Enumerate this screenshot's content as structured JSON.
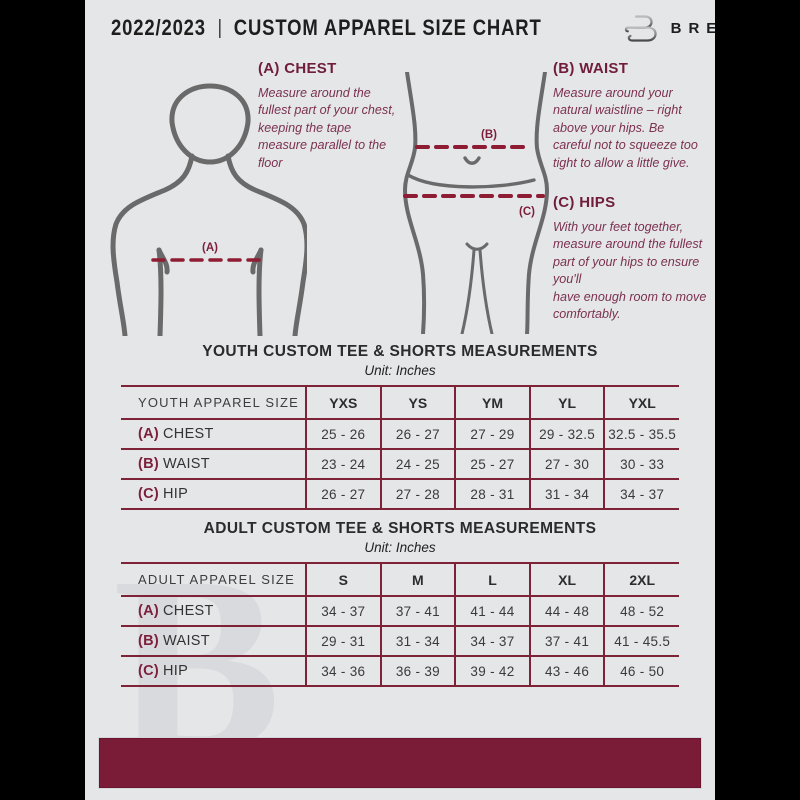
{
  "header": {
    "season": "2022/2023",
    "separator": "|",
    "title": "CUSTOM APPAREL SIZE CHART",
    "brand": "BREAKAWAY",
    "logo_icon": "breakaway-b-logo"
  },
  "colors": {
    "page_background": "#e5e6e8",
    "letterbox": "#000000",
    "maroon_accent": "#7a1c38",
    "maroon_table_line": "#7e2238",
    "maroon_dash_line": "#8e1c33",
    "figure_gray": "#6a6a6b"
  },
  "notes": {
    "chest": {
      "heading": "(A) CHEST",
      "body": "Measure around the fullest part of your chest, keeping the tape measure parallel to the floor"
    },
    "waist": {
      "heading": "(B) WAIST",
      "body": "Measure around your natural waistline – right above your hips. Be careful not to squeeze too tight to allow a little give."
    },
    "hips": {
      "heading": "(C) HIPS",
      "body": "With your feet together, measure around the fullest part of your hips to ensure you'll\nhave enough room to move comfortably."
    }
  },
  "diagram": {
    "label_a": "(A)",
    "label_b": "(B)",
    "label_c": "(C)"
  },
  "watermark": {
    "letter": "B"
  },
  "youth": {
    "title": "YOUTH CUSTOM TEE & SHORTS MEASUREMENTS",
    "unit": "Unit: Inches",
    "size_header": "YOUTH APPAREL SIZE",
    "columns": [
      "YXS",
      "YS",
      "YM",
      "YL",
      "YXL"
    ],
    "rows": [
      {
        "prefix": "(A)",
        "label": "CHEST",
        "values": [
          "25 - 26",
          "26 - 27",
          "27 - 29",
          "29 - 32.5",
          "32.5 - 35.5"
        ]
      },
      {
        "prefix": "(B)",
        "label": "WAIST",
        "values": [
          "23 - 24",
          "24 - 25",
          "25 - 27",
          "27 - 30",
          "30 - 33"
        ]
      },
      {
        "prefix": "(C)",
        "label": "HIP",
        "values": [
          "26 - 27",
          "27 - 28",
          "28 - 31",
          "31 - 34",
          "34 - 37"
        ]
      }
    ]
  },
  "adult": {
    "title": "ADULT CUSTOM TEE & SHORTS MEASUREMENTS",
    "unit": "Unit: Inches",
    "size_header": "ADULT APPAREL SIZE",
    "columns": [
      "S",
      "M",
      "L",
      "XL",
      "2XL"
    ],
    "rows": [
      {
        "prefix": "(A)",
        "label": "CHEST",
        "values": [
          "34 - 37",
          "37 - 41",
          "41 - 44",
          "44 - 48",
          "48 - 52"
        ]
      },
      {
        "prefix": "(B)",
        "label": "WAIST",
        "values": [
          "29 - 31",
          "31 - 34",
          "34 - 37",
          "37 - 41",
          "41 - 45.5"
        ]
      },
      {
        "prefix": "(C)",
        "label": "HIP",
        "values": [
          "34 - 36",
          "36 - 39",
          "39 - 42",
          "43 - 46",
          "46 - 50"
        ]
      }
    ]
  }
}
